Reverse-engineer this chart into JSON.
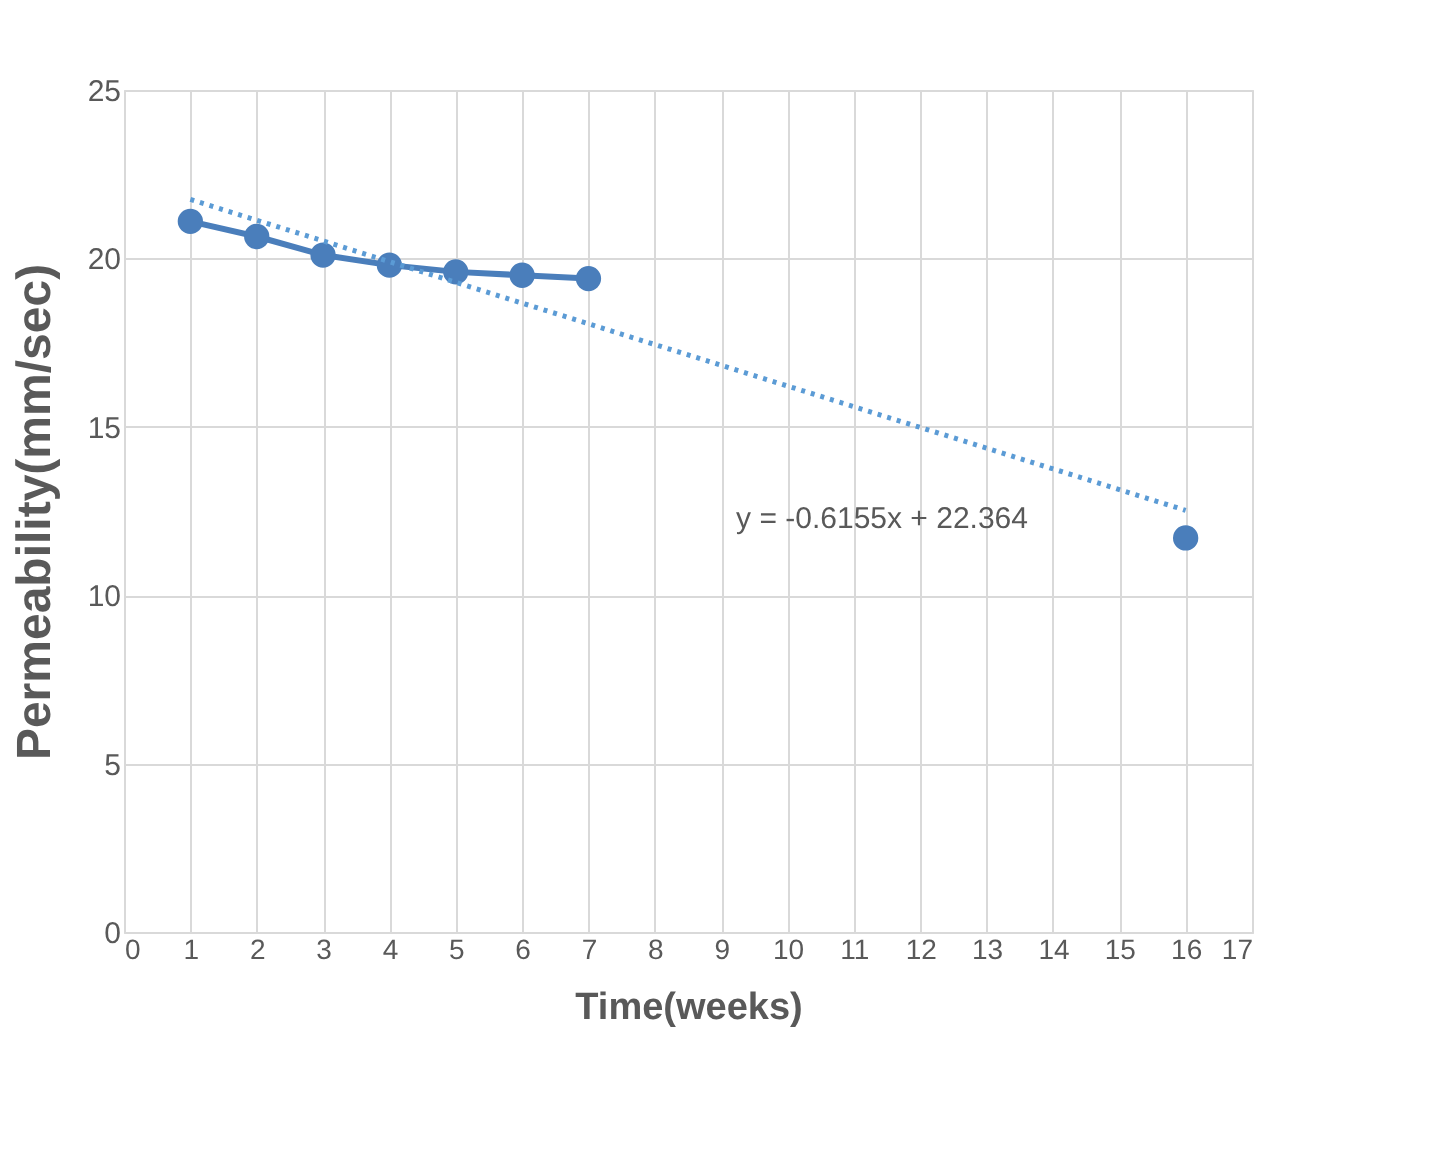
{
  "chart_data": {
    "type": "line",
    "xlabel": "Time(weeks)",
    "ylabel": "Permeability(mm/sec)",
    "x": [
      1,
      2,
      3,
      4,
      5,
      6,
      7,
      8,
      9,
      10,
      11,
      12,
      13,
      14,
      15,
      16
    ],
    "series": [
      {
        "color": "#4a7ebb",
        "values": [
          21.1,
          20.65,
          20.1,
          19.8,
          19.6,
          19.5,
          19.4,
          null,
          null,
          null,
          null,
          null,
          null,
          null,
          null,
          11.7
        ],
        "marker": "circle",
        "line_style": "solid"
      },
      {
        "type": "line",
        "color": "#5b9bd5",
        "x": [
          1,
          16
        ],
        "values": [
          21.75,
          12.52
        ],
        "marker": "none",
        "line_style": "dotted"
      }
    ],
    "annotations": [
      "y = -0.6155x + 22.364"
    ],
    "xlim": [
      0,
      17
    ],
    "xticks": [
      0,
      1,
      2,
      3,
      4,
      5,
      6,
      7,
      8,
      9,
      10,
      11,
      12,
      13,
      14,
      15,
      16,
      17
    ],
    "ylim": [
      0,
      25
    ],
    "yticks": [
      0,
      5,
      10,
      15,
      20,
      25
    ],
    "grid": true
  }
}
